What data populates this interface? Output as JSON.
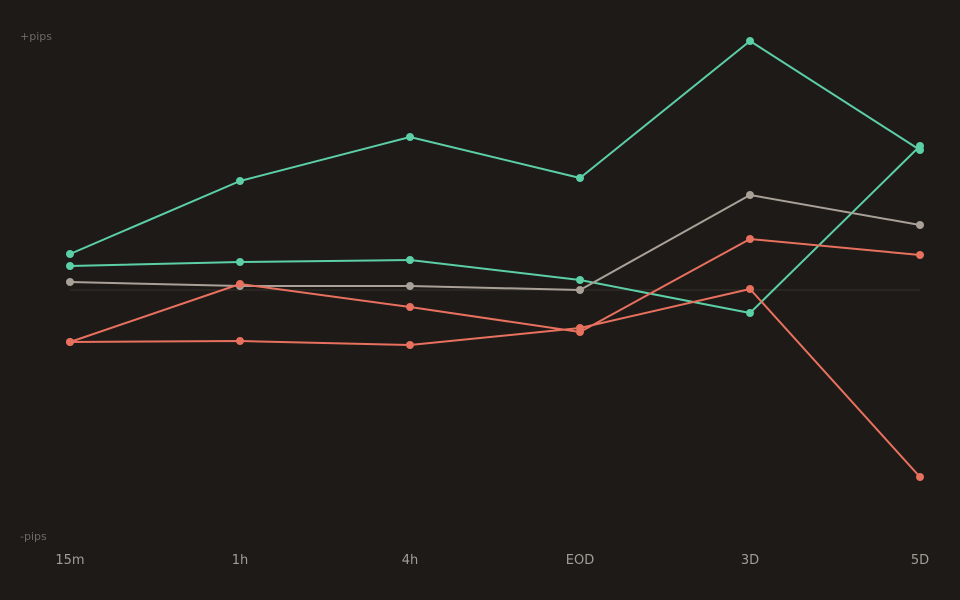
{
  "chart_data": {
    "type": "line",
    "title": "",
    "xlabel": "",
    "ylabel_top": "+pips",
    "ylabel_bottom": "-pips",
    "categories": [
      "15m",
      "1h",
      "4h",
      "EOD",
      "3D",
      "5D"
    ],
    "ylim": [
      -250,
      250
    ],
    "zero_line": true,
    "grid": false,
    "legend": "none",
    "series": [
      {
        "color": "#5ccfa6",
        "values": [
          36,
          109,
          153,
          112,
          249,
          140
        ]
      },
      {
        "color": "#5ccfa6",
        "values": [
          24,
          28,
          30,
          10,
          -23,
          144
        ]
      },
      {
        "color": "#a9a097",
        "values": [
          8,
          4,
          4,
          0,
          95,
          65
        ]
      },
      {
        "color": "#e8705e",
        "values": [
          -52,
          6,
          -17,
          -42,
          51,
          35
        ]
      },
      {
        "color": "#e8705e",
        "values": [
          -52,
          -51,
          -55,
          -38,
          1,
          -187
        ]
      }
    ]
  }
}
